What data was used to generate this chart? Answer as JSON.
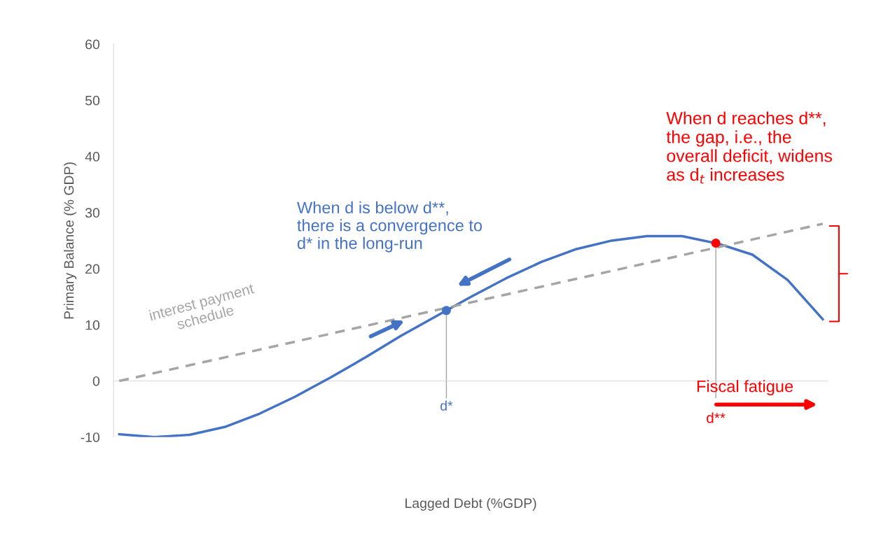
{
  "chart_data": {
    "type": "line",
    "xlabel": "Lagged Debt (%GDP)",
    "ylabel": "Primary Balance (% GDP)",
    "categories": [
      null,
      null,
      null,
      null,
      null,
      null,
      null,
      null,
      null,
      null,
      null,
      null,
      null,
      null,
      null,
      null,
      null,
      null,
      null,
      null,
      null
    ],
    "ylim": [
      -10,
      60
    ],
    "yticks": [
      -10,
      0,
      10,
      20,
      30,
      40,
      50,
      60
    ],
    "tick_labels": "y",
    "series": [
      {
        "color": "#4472c4",
        "line_style": "solid",
        "values": [
          -9.5,
          -10,
          -9.6,
          -8.2,
          -5.8,
          -2.8,
          0.6,
          4.2,
          8,
          11.5,
          15,
          18.3,
          21.2,
          23.5,
          25,
          25.8,
          25.8,
          24.5,
          22.5,
          18,
          11
        ]
      },
      {
        "color": "#a5a5a5",
        "line_style": "dashed",
        "values": [
          0,
          1.4,
          2.8,
          4.2,
          5.6,
          7,
          8.4,
          9.8,
          11.2,
          12.6,
          14,
          15.4,
          16.8,
          18.2,
          19.6,
          21,
          22.4,
          23.8,
          25.2,
          26.6,
          28
        ]
      }
    ],
    "annotations": [
      "When d is below d**,\nthere is a convergence to\nd* in the long-run",
      "When d reaches d**,\nthe gap, i.e., the\noverall deficit, widens\nas d$_{t}$ increases",
      "interest payment\nschedule",
      "Fiscal fatigue",
      "d*",
      "d**"
    ]
  }
}
